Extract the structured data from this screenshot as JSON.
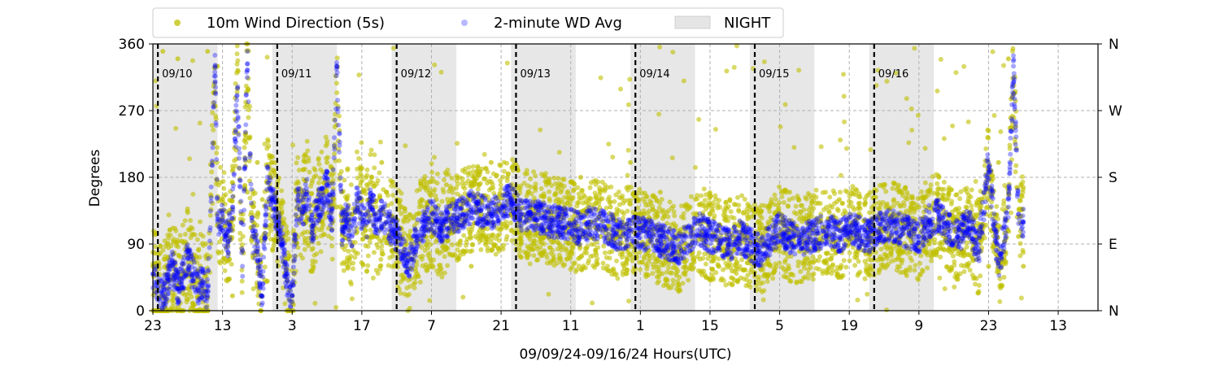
{
  "chart_data": {
    "type": "scatter",
    "title": "",
    "xlabel": "09/09/24-09/16/24  Hours(UTC)",
    "ylabel": "Degrees",
    "x_start": "09/09/24 23:00 UTC",
    "x_range_hours": [
      0,
      190
    ],
    "ylim": [
      0,
      360
    ],
    "x_tick_labels": [
      "23",
      "13",
      "3",
      "17",
      "7",
      "21",
      "11",
      "1",
      "15",
      "5",
      "19",
      "9",
      "23",
      "13"
    ],
    "y_tick_labels": [
      "0",
      "90",
      "180",
      "270",
      "360"
    ],
    "y2_tick_labels": [
      "N",
      "E",
      "S",
      "W",
      "N"
    ],
    "grid": true,
    "legend_position": "top (above plot)",
    "legend": [
      {
        "label": "10m Wind Direction (5s)",
        "color": "#bfbf00",
        "marker": "dot"
      },
      {
        "label": "2-minute WD Avg",
        "color": "#0000ff",
        "marker": "dot-faded"
      },
      {
        "label": "NIGHT",
        "color": "#d3d3d3",
        "marker": "patch"
      }
    ],
    "day_markers": [
      {
        "label": "09/10"
      },
      {
        "label": "09/11"
      },
      {
        "label": "09/12"
      },
      {
        "label": "09/13"
      },
      {
        "label": "09/14"
      },
      {
        "label": "09/15"
      },
      {
        "label": "09/16"
      }
    ],
    "night_periods": [
      {
        "start_hour": 0,
        "end_hour": 13
      },
      {
        "start_hour": 24,
        "end_hour": 37
      },
      {
        "start_hour": 48,
        "end_hour": 61
      },
      {
        "start_hour": 72,
        "end_hour": 85
      },
      {
        "start_hour": 96,
        "end_hour": 109
      },
      {
        "start_hour": 120,
        "end_hour": 133
      },
      {
        "start_hour": 144,
        "end_hour": 157
      }
    ],
    "series": [
      {
        "name": "10m Wind Direction (5s)",
        "color": "#bfbf00",
        "x": [
          0,
          1,
          2,
          3,
          4,
          5,
          6,
          7,
          8,
          9,
          10,
          11,
          12,
          13,
          14,
          15,
          16,
          17,
          18,
          19,
          20,
          21,
          22,
          23,
          24,
          25,
          26,
          27,
          28,
          29,
          30,
          31,
          32,
          33,
          34,
          35,
          36,
          37,
          38,
          39,
          40,
          41,
          42,
          43,
          44,
          45,
          46,
          47,
          48,
          49,
          50,
          51,
          52,
          53,
          54,
          55,
          56,
          57,
          58,
          59,
          60,
          62,
          64,
          66,
          68,
          70,
          72,
          74,
          76,
          78,
          80,
          82,
          84,
          86,
          88,
          90,
          92,
          94,
          96,
          98,
          100,
          102,
          104,
          106,
          108,
          110,
          112,
          114,
          116,
          118,
          120,
          122,
          124,
          126,
          128,
          130,
          132,
          134,
          136,
          138,
          140,
          142,
          144,
          146,
          148,
          150,
          152,
          154,
          156,
          158,
          160,
          162,
          164,
          166,
          168,
          170,
          172,
          174,
          175
        ],
        "y": [
          60,
          40,
          350,
          30,
          20,
          340,
          50,
          30,
          10,
          45,
          30,
          350,
          200,
          330,
          150,
          120,
          20,
          300,
          80,
          160,
          100,
          200,
          150,
          40,
          200,
          150,
          120,
          40,
          20,
          160,
          130,
          160,
          100,
          140,
          120,
          200,
          110,
          140,
          160,
          150,
          130,
          140,
          150,
          170,
          180,
          100,
          200,
          160,
          120,
          80,
          140,
          90,
          70,
          130,
          150,
          110,
          100,
          150,
          130,
          170,
          120,
          140,
          60,
          130,
          200,
          110,
          150,
          90,
          140,
          100,
          130,
          160,
          80,
          180,
          120,
          100,
          140,
          90,
          200,
          130,
          120,
          160,
          110,
          80,
          140,
          100,
          130,
          90,
          150,
          120,
          70,
          110,
          140,
          100,
          160,
          80,
          130,
          120,
          100,
          150,
          90,
          140,
          110,
          130,
          100,
          160,
          120,
          140,
          90,
          180,
          110,
          130,
          100,
          150,
          60,
          200,
          340,
          100,
          60
        ]
      },
      {
        "name": "2-minute WD Avg",
        "color": "#0000ff",
        "x": [
          0,
          1,
          2,
          3,
          4,
          5,
          6,
          7,
          8,
          9,
          10,
          11,
          12,
          12.5,
          13,
          14,
          15,
          16,
          17,
          18,
          19,
          20,
          21,
          22,
          23,
          24,
          25,
          26,
          27,
          28,
          29,
          30,
          31,
          32,
          33,
          34,
          35,
          36,
          37,
          38,
          39,
          40,
          41,
          42,
          43,
          44,
          45,
          46,
          47,
          48,
          49,
          50,
          51,
          52,
          53,
          54,
          55,
          56,
          57,
          58,
          59,
          60,
          62,
          64,
          66,
          68,
          70,
          72,
          74,
          76,
          78,
          80,
          82,
          84,
          86,
          88,
          90,
          92,
          94,
          96,
          98,
          100,
          102,
          104,
          106,
          108,
          110,
          112,
          114,
          116,
          118,
          120,
          122,
          124,
          126,
          128,
          130,
          132,
          134,
          136,
          138,
          140,
          142,
          144,
          146,
          148,
          150,
          152,
          154,
          156,
          158,
          160,
          162,
          164,
          166,
          168,
          170,
          172,
          173,
          174,
          175
        ],
        "y": [
          50,
          30,
          20,
          40,
          60,
          30,
          45,
          70,
          50,
          30,
          40,
          20,
          220,
          330,
          120,
          130,
          90,
          140,
          300,
          60,
          350,
          100,
          80,
          20,
          180,
          150,
          120,
          90,
          40,
          20,
          150,
          130,
          160,
          110,
          140,
          150,
          170,
          120,
          330,
          110,
          130,
          100,
          150,
          130,
          120,
          150,
          110,
          130,
          120,
          110,
          100,
          90,
          60,
          70,
          100,
          110,
          120,
          130,
          120,
          110,
          120,
          125,
          130,
          140,
          135,
          130,
          140,
          150,
          130,
          130,
          125,
          120,
          120,
          115,
          110,
          120,
          115,
          110,
          100,
          110,
          105,
          100,
          95,
          90,
          85,
          100,
          110,
          100,
          95,
          90,
          100,
          90,
          80,
          95,
          110,
          100,
          95,
          100,
          105,
          110,
          100,
          110,
          105,
          100,
          110,
          115,
          110,
          105,
          100,
          120,
          130,
          110,
          100,
          120,
          80,
          200,
          60,
          140,
          330,
          130,
          120
        ]
      }
    ]
  }
}
